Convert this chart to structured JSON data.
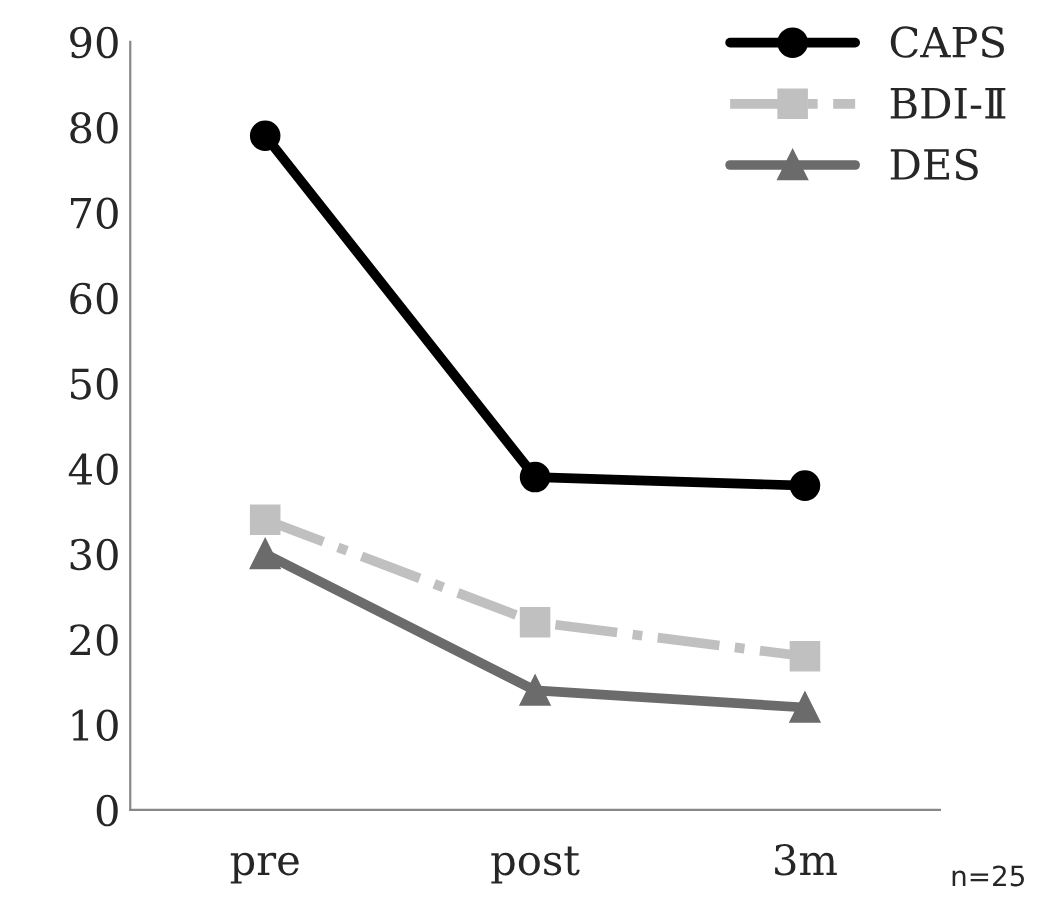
{
  "chart_data": {
    "type": "line",
    "categories": [
      "pre",
      "post",
      "3m"
    ],
    "series": [
      {
        "name": "CAPS",
        "color": "#000000",
        "values": [
          79,
          39,
          38
        ],
        "marker": "circle",
        "line_style": "solid"
      },
      {
        "name": "BDI-Ⅱ",
        "color": "#c0c0c0",
        "values": [
          34,
          22,
          18
        ],
        "marker": "square",
        "line_style": "dashed"
      },
      {
        "name": "DES",
        "color": "#6b6b6b",
        "values": [
          30,
          14,
          12
        ],
        "marker": "triangle",
        "line_style": "solid"
      }
    ],
    "ylim": [
      0,
      90
    ],
    "yticks": [
      0,
      10,
      20,
      30,
      40,
      50,
      60,
      70,
      80,
      90
    ],
    "grid": false,
    "legend": "top right",
    "annotations": [
      {
        "text": "n=25"
      }
    ]
  }
}
